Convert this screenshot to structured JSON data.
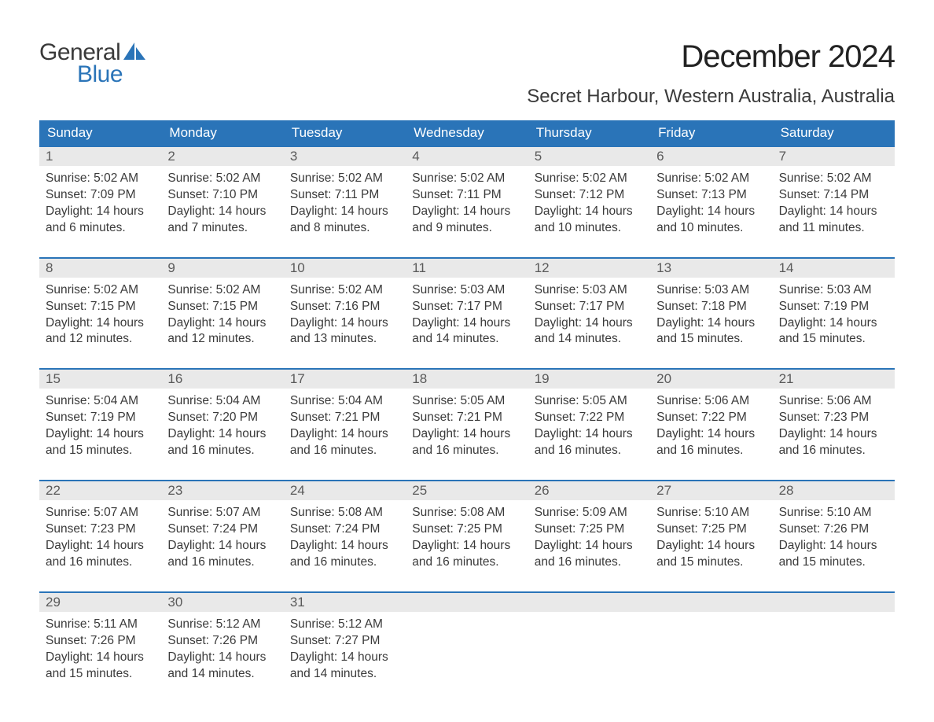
{
  "logo": {
    "word1": "General",
    "word2": "Blue",
    "shape_color": "#2a74b8"
  },
  "title": "December 2024",
  "location": "Secret Harbour, Western Australia, Australia",
  "colors": {
    "header_bg": "#2a74b8",
    "header_text": "#ffffff",
    "daynum_bg": "#e9e9e9",
    "body_text": "#3a3a3a",
    "week_border": "#2a74b8"
  },
  "day_headers": [
    "Sunday",
    "Monday",
    "Tuesday",
    "Wednesday",
    "Thursday",
    "Friday",
    "Saturday"
  ],
  "weeks": [
    [
      {
        "num": "1",
        "sunrise": "Sunrise: 5:02 AM",
        "sunset": "Sunset: 7:09 PM",
        "day1": "Daylight: 14 hours",
        "day2": "and 6 minutes."
      },
      {
        "num": "2",
        "sunrise": "Sunrise: 5:02 AM",
        "sunset": "Sunset: 7:10 PM",
        "day1": "Daylight: 14 hours",
        "day2": "and 7 minutes."
      },
      {
        "num": "3",
        "sunrise": "Sunrise: 5:02 AM",
        "sunset": "Sunset: 7:11 PM",
        "day1": "Daylight: 14 hours",
        "day2": "and 8 minutes."
      },
      {
        "num": "4",
        "sunrise": "Sunrise: 5:02 AM",
        "sunset": "Sunset: 7:11 PM",
        "day1": "Daylight: 14 hours",
        "day2": "and 9 minutes."
      },
      {
        "num": "5",
        "sunrise": "Sunrise: 5:02 AM",
        "sunset": "Sunset: 7:12 PM",
        "day1": "Daylight: 14 hours",
        "day2": "and 10 minutes."
      },
      {
        "num": "6",
        "sunrise": "Sunrise: 5:02 AM",
        "sunset": "Sunset: 7:13 PM",
        "day1": "Daylight: 14 hours",
        "day2": "and 10 minutes."
      },
      {
        "num": "7",
        "sunrise": "Sunrise: 5:02 AM",
        "sunset": "Sunset: 7:14 PM",
        "day1": "Daylight: 14 hours",
        "day2": "and 11 minutes."
      }
    ],
    [
      {
        "num": "8",
        "sunrise": "Sunrise: 5:02 AM",
        "sunset": "Sunset: 7:15 PM",
        "day1": "Daylight: 14 hours",
        "day2": "and 12 minutes."
      },
      {
        "num": "9",
        "sunrise": "Sunrise: 5:02 AM",
        "sunset": "Sunset: 7:15 PM",
        "day1": "Daylight: 14 hours",
        "day2": "and 12 minutes."
      },
      {
        "num": "10",
        "sunrise": "Sunrise: 5:02 AM",
        "sunset": "Sunset: 7:16 PM",
        "day1": "Daylight: 14 hours",
        "day2": "and 13 minutes."
      },
      {
        "num": "11",
        "sunrise": "Sunrise: 5:03 AM",
        "sunset": "Sunset: 7:17 PM",
        "day1": "Daylight: 14 hours",
        "day2": "and 14 minutes."
      },
      {
        "num": "12",
        "sunrise": "Sunrise: 5:03 AM",
        "sunset": "Sunset: 7:17 PM",
        "day1": "Daylight: 14 hours",
        "day2": "and 14 minutes."
      },
      {
        "num": "13",
        "sunrise": "Sunrise: 5:03 AM",
        "sunset": "Sunset: 7:18 PM",
        "day1": "Daylight: 14 hours",
        "day2": "and 15 minutes."
      },
      {
        "num": "14",
        "sunrise": "Sunrise: 5:03 AM",
        "sunset": "Sunset: 7:19 PM",
        "day1": "Daylight: 14 hours",
        "day2": "and 15 minutes."
      }
    ],
    [
      {
        "num": "15",
        "sunrise": "Sunrise: 5:04 AM",
        "sunset": "Sunset: 7:19 PM",
        "day1": "Daylight: 14 hours",
        "day2": "and 15 minutes."
      },
      {
        "num": "16",
        "sunrise": "Sunrise: 5:04 AM",
        "sunset": "Sunset: 7:20 PM",
        "day1": "Daylight: 14 hours",
        "day2": "and 16 minutes."
      },
      {
        "num": "17",
        "sunrise": "Sunrise: 5:04 AM",
        "sunset": "Sunset: 7:21 PM",
        "day1": "Daylight: 14 hours",
        "day2": "and 16 minutes."
      },
      {
        "num": "18",
        "sunrise": "Sunrise: 5:05 AM",
        "sunset": "Sunset: 7:21 PM",
        "day1": "Daylight: 14 hours",
        "day2": "and 16 minutes."
      },
      {
        "num": "19",
        "sunrise": "Sunrise: 5:05 AM",
        "sunset": "Sunset: 7:22 PM",
        "day1": "Daylight: 14 hours",
        "day2": "and 16 minutes."
      },
      {
        "num": "20",
        "sunrise": "Sunrise: 5:06 AM",
        "sunset": "Sunset: 7:22 PM",
        "day1": "Daylight: 14 hours",
        "day2": "and 16 minutes."
      },
      {
        "num": "21",
        "sunrise": "Sunrise: 5:06 AM",
        "sunset": "Sunset: 7:23 PM",
        "day1": "Daylight: 14 hours",
        "day2": "and 16 minutes."
      }
    ],
    [
      {
        "num": "22",
        "sunrise": "Sunrise: 5:07 AM",
        "sunset": "Sunset: 7:23 PM",
        "day1": "Daylight: 14 hours",
        "day2": "and 16 minutes."
      },
      {
        "num": "23",
        "sunrise": "Sunrise: 5:07 AM",
        "sunset": "Sunset: 7:24 PM",
        "day1": "Daylight: 14 hours",
        "day2": "and 16 minutes."
      },
      {
        "num": "24",
        "sunrise": "Sunrise: 5:08 AM",
        "sunset": "Sunset: 7:24 PM",
        "day1": "Daylight: 14 hours",
        "day2": "and 16 minutes."
      },
      {
        "num": "25",
        "sunrise": "Sunrise: 5:08 AM",
        "sunset": "Sunset: 7:25 PM",
        "day1": "Daylight: 14 hours",
        "day2": "and 16 minutes."
      },
      {
        "num": "26",
        "sunrise": "Sunrise: 5:09 AM",
        "sunset": "Sunset: 7:25 PM",
        "day1": "Daylight: 14 hours",
        "day2": "and 16 minutes."
      },
      {
        "num": "27",
        "sunrise": "Sunrise: 5:10 AM",
        "sunset": "Sunset: 7:25 PM",
        "day1": "Daylight: 14 hours",
        "day2": "and 15 minutes."
      },
      {
        "num": "28",
        "sunrise": "Sunrise: 5:10 AM",
        "sunset": "Sunset: 7:26 PM",
        "day1": "Daylight: 14 hours",
        "day2": "and 15 minutes."
      }
    ],
    [
      {
        "num": "29",
        "sunrise": "Sunrise: 5:11 AM",
        "sunset": "Sunset: 7:26 PM",
        "day1": "Daylight: 14 hours",
        "day2": "and 15 minutes."
      },
      {
        "num": "30",
        "sunrise": "Sunrise: 5:12 AM",
        "sunset": "Sunset: 7:26 PM",
        "day1": "Daylight: 14 hours",
        "day2": "and 14 minutes."
      },
      {
        "num": "31",
        "sunrise": "Sunrise: 5:12 AM",
        "sunset": "Sunset: 7:27 PM",
        "day1": "Daylight: 14 hours",
        "day2": "and 14 minutes."
      },
      null,
      null,
      null,
      null
    ]
  ]
}
